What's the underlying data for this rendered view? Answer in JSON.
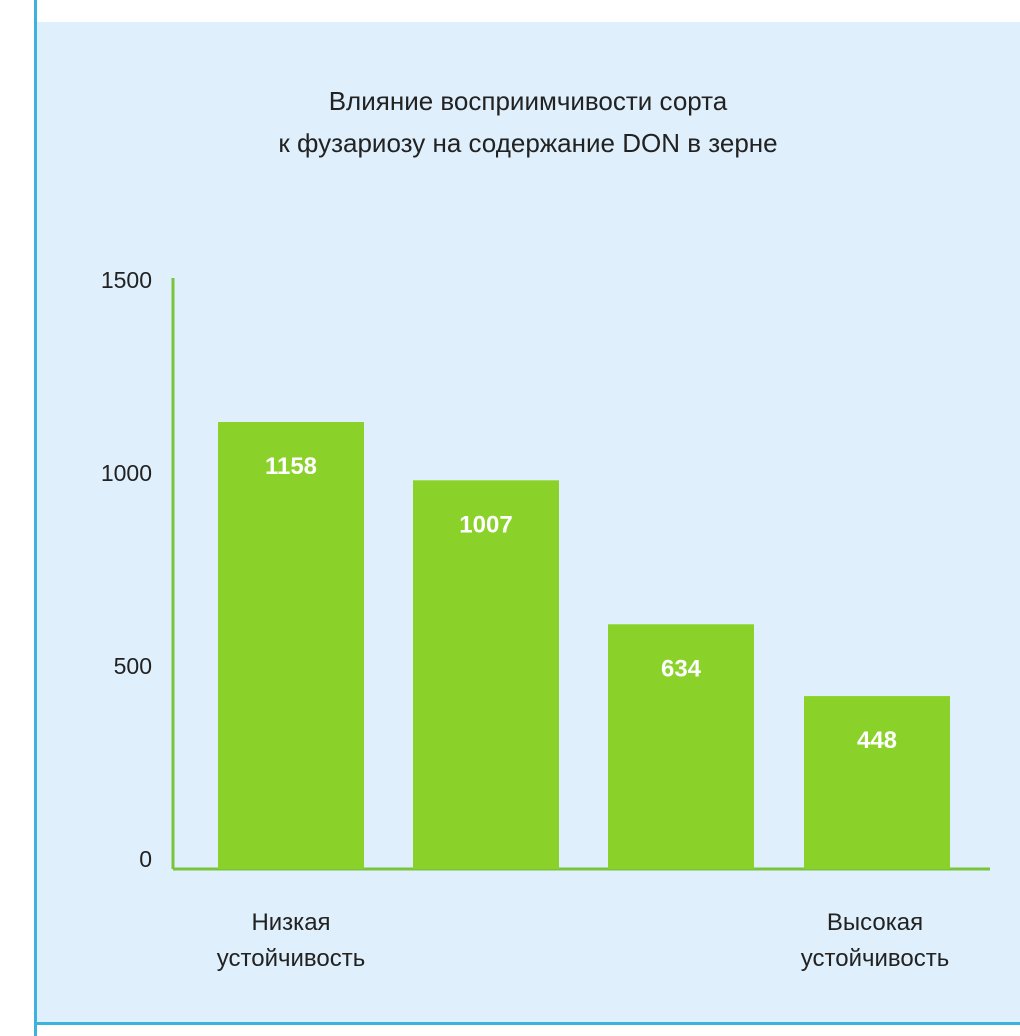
{
  "colors": {
    "bar": "#8ad22a",
    "axis": "#7ac43a",
    "panel_bg": "#dfeffb",
    "border": "#3db2dc",
    "text": "#222222",
    "bar_label": "#ffffff"
  },
  "chart_data": {
    "type": "bar",
    "title": "Влияние восприимчивости сорта к фузариозу на содержание DON в зерне",
    "title_lines": [
      "Влияние восприимчивости сорта",
      "к фузариозу на содержание DON в зерне"
    ],
    "xlabel": "",
    "ylabel": "",
    "categories": [
      "",
      "",
      "",
      ""
    ],
    "values": [
      1158,
      1007,
      634,
      448
    ],
    "data_labels": [
      "1158",
      "1007",
      "634",
      "448"
    ],
    "ylim": [
      0,
      1500
    ],
    "yticks": [
      0,
      500,
      1000,
      1500
    ],
    "x_annotations": {
      "left": [
        "Низкая",
        "устойчивость"
      ],
      "right": [
        "Высокая",
        "устойчивость"
      ]
    },
    "grid": false,
    "legend": "none"
  }
}
